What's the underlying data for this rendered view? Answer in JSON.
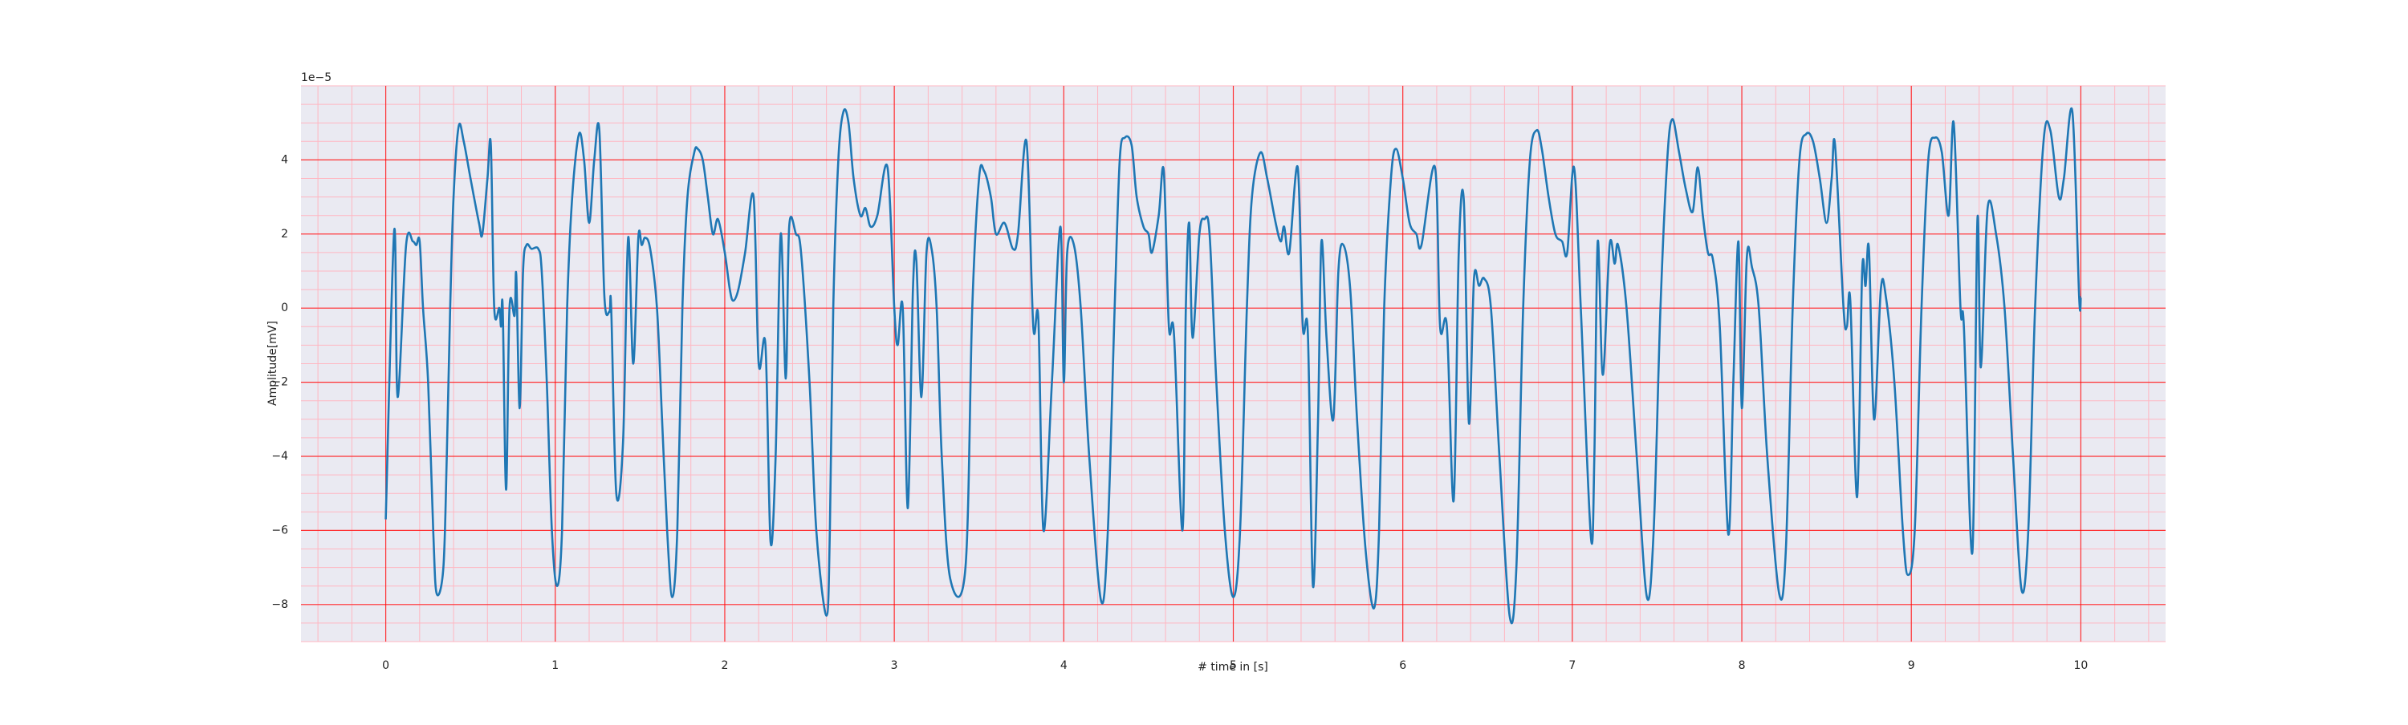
{
  "chart_data": {
    "type": "line",
    "xlabel": "# time in [s]",
    "ylabel": "Amplitude[mV]",
    "y_offset_label": "1e−5",
    "color": "#1f77b4",
    "grid": true,
    "grid_color": "#ff0000",
    "minor_grid_color": "#ffb6c1",
    "minor_grid": {
      "x": 0.2,
      "y": 0.5
    },
    "xlim": [
      -0.5,
      10.5
    ],
    "xticks": [
      0,
      1,
      2,
      3,
      4,
      5,
      6,
      7,
      8,
      9,
      10
    ],
    "ylim": [
      -9,
      6
    ],
    "yticks": [
      {
        "value": -8,
        "label": "−8"
      },
      {
        "value": -6,
        "label": "−6"
      },
      {
        "value": -4,
        "label": "−4"
      },
      {
        "value": -2,
        "label": "−2"
      },
      0,
      2,
      4
    ],
    "x": [
      0,
      0.05,
      0.07,
      0.12,
      0.16,
      0.18,
      0.2,
      0.22,
      0.25,
      0.28,
      0.3,
      0.34,
      0.36,
      0.38,
      0.4,
      0.43,
      0.46,
      0.5,
      0.55,
      0.57,
      0.6,
      0.62,
      0.64,
      0.67,
      0.68,
      0.69,
      0.71,
      0.73,
      0.76,
      0.77,
      0.79,
      0.81,
      0.83,
      0.86,
      0.9,
      0.92,
      0.95,
      0.98,
      1.01,
      1.04,
      1.07,
      1.1,
      1.14,
      1.17,
      1.2,
      1.23,
      1.26,
      1.29,
      1.32,
      1.33,
      1.36,
      1.4,
      1.43,
      1.46,
      1.49,
      1.51,
      1.53,
      1.56,
      1.6,
      1.63,
      1.66,
      1.69,
      1.72,
      1.75,
      1.78,
      1.82,
      1.84,
      1.87,
      1.9,
      1.93,
      1.96,
      2.0,
      2.03,
      2.05,
      2.08,
      2.12,
      2.17,
      2.2,
      2.24,
      2.27,
      2.3,
      2.33,
      2.36,
      2.38,
      2.42,
      2.45,
      2.5,
      2.54,
      2.6,
      2.62,
      2.64,
      2.67,
      2.7,
      2.73,
      2.76,
      2.8,
      2.83,
      2.86,
      2.9,
      2.96,
      3.0,
      3.02,
      3.05,
      3.08,
      3.11,
      3.13,
      3.16,
      3.19,
      3.22,
      3.25,
      3.28,
      3.33,
      3.42,
      3.46,
      3.5,
      3.53,
      3.57,
      3.6,
      3.65,
      3.7,
      3.73,
      3.78,
      3.82,
      3.85,
      3.88,
      3.93,
      3.98,
      4.0,
      4.02,
      4.06,
      4.1,
      4.15,
      4.22,
      4.26,
      4.3,
      4.33,
      4.36,
      4.4,
      4.43,
      4.47,
      4.5,
      4.52,
      4.56,
      4.59,
      4.62,
      4.65,
      4.7,
      4.72,
      4.74,
      4.76,
      4.8,
      4.83,
      4.86,
      4.9,
      4.95,
      5.0,
      5.04,
      5.08,
      5.11,
      5.16,
      5.2,
      5.25,
      5.28,
      5.3,
      5.33,
      5.38,
      5.41,
      5.44,
      5.47,
      5.5,
      5.52,
      5.55,
      5.59,
      5.62,
      5.65,
      5.69,
      5.73,
      5.78,
      5.83,
      5.86,
      5.89,
      5.93,
      5.96,
      6.0,
      6.04,
      6.08,
      6.11,
      6.19,
      6.22,
      6.26,
      6.3,
      6.33,
      6.36,
      6.39,
      6.42,
      6.45,
      6.48,
      6.52,
      6.57,
      6.63,
      6.67,
      6.71,
      6.75,
      6.79,
      6.82,
      6.86,
      6.9,
      6.94,
      6.97,
      7.01,
      7.05,
      7.11,
      7.13,
      7.15,
      7.18,
      7.22,
      7.25,
      7.27,
      7.32,
      7.38,
      7.44,
      7.48,
      7.52,
      7.56,
      7.59,
      7.63,
      7.67,
      7.71,
      7.74,
      7.77,
      7.8,
      7.83,
      7.87,
      7.92,
      7.95,
      7.98,
      8.0,
      8.03,
      8.06,
      8.1,
      8.15,
      8.22,
      8.26,
      8.3,
      8.34,
      8.38,
      8.42,
      8.46,
      8.5,
      8.53,
      8.55,
      8.6,
      8.62,
      8.64,
      8.68,
      8.71,
      8.73,
      8.75,
      8.78,
      8.82,
      8.85,
      8.9,
      8.95,
      8.98,
      9.02,
      9.06,
      9.1,
      9.14,
      9.18,
      9.22,
      9.25,
      9.29,
      9.31,
      9.36,
      9.39,
      9.41,
      9.45,
      9.5,
      9.55,
      9.6,
      9.65,
      9.69,
      9.73,
      9.78,
      9.82,
      9.87,
      9.9,
      9.95,
      9.99,
      10.0
    ],
    "values": [
      -5.7,
      2.1,
      -2.4,
      1.7,
      1.8,
      1.7,
      1.8,
      0,
      -2,
      -6,
      -7.7,
      -7,
      -4,
      0,
      3,
      4.9,
      4.5,
      3.5,
      2.3,
      2.0,
      3.5,
      4.4,
      0,
      0,
      -0.5,
      0,
      -4.9,
      0,
      -0.2,
      0.9,
      -2.7,
      1.0,
      1.7,
      1.6,
      1.6,
      1.0,
      -2,
      -6,
      -7.5,
      -6,
      0,
      3,
      4.7,
      4,
      2.3,
      4,
      4.8,
      0.3,
      -0.1,
      0,
      -5,
      -3.6,
      1.9,
      -1.5,
      1.9,
      1.7,
      1.9,
      1.6,
      0,
      -3,
      -6,
      -7.8,
      -6,
      0,
      3,
      4.2,
      4.3,
      4,
      3,
      2.0,
      2.4,
      1.5,
      0.5,
      0.2,
      0.5,
      1.5,
      3,
      -1.5,
      -1,
      -6.3,
      -4,
      2,
      -1.9,
      2.2,
      2,
      1.5,
      -2,
      -6,
      -8.3,
      -6,
      0,
      4,
      5.3,
      5.0,
      3.5,
      2.5,
      2.7,
      2.2,
      2.5,
      3.8,
      0,
      -1,
      0,
      -5.4,
      0.5,
      1.3,
      -2.4,
      1.5,
      1.6,
      0,
      -4,
      -7.3,
      -7,
      0,
      3.5,
      3.7,
      3,
      2,
      2.3,
      1.6,
      2,
      4.5,
      -0.5,
      -0.3,
      -6,
      -2,
      2.2,
      -2,
      1.5,
      1.7,
      0,
      -4,
      -7.9,
      -6,
      0,
      4.0,
      4.6,
      4.4,
      3,
      2.2,
      2.0,
      1.5,
      2.5,
      3.7,
      -0.5,
      -0.7,
      -6,
      0,
      2.3,
      -0.8,
      2,
      2.4,
      2,
      -2,
      -6,
      -7.8,
      -6,
      0,
      3,
      4.2,
      3.5,
      2.3,
      1.8,
      2.2,
      1.5,
      3.8,
      -0.5,
      -0.7,
      -7.5,
      -3,
      1.8,
      -0.8,
      -3,
      1,
      1.7,
      0.5,
      -3,
      -6.5,
      -8.1,
      -6,
      0,
      3.5,
      4.3,
      3.5,
      2.3,
      2.0,
      1.7,
      3.8,
      -0.5,
      -0.5,
      -5.2,
      1.5,
      2.9,
      -3.1,
      0.8,
      0.6,
      0.8,
      0,
      -4,
      -8.3,
      -7,
      0,
      4,
      4.8,
      4.3,
      3,
      2,
      1.8,
      1.5,
      3.8,
      0,
      -6.2,
      -4,
      1.8,
      -1.8,
      1.7,
      1.2,
      1.7,
      0,
      -4,
      -7.8,
      -6,
      0,
      4,
      5.1,
      4.2,
      3.2,
      2.6,
      3.8,
      2.5,
      1.5,
      1.3,
      -0.5,
      -6.1,
      -2,
      1.8,
      -2.7,
      1.4,
      1.1,
      0,
      -4,
      -7.7,
      -6.5,
      0,
      4,
      4.7,
      4.5,
      3.5,
      2.3,
      3.5,
      4.4,
      0,
      -0.5,
      0.2,
      -5.1,
      1,
      0.6,
      1.6,
      -3,
      0.5,
      0.3,
      -2,
      -6,
      -7.2,
      -6,
      0,
      4,
      4.6,
      4.2,
      2.5,
      5.0,
      0,
      -0.5,
      -6.6,
      2.4,
      -1.6,
      2.7,
      2,
      0,
      -4,
      -7.6,
      -6,
      0,
      4.5,
      4.8,
      3,
      3.5,
      5.3,
      0.3,
      0.3
    ]
  }
}
